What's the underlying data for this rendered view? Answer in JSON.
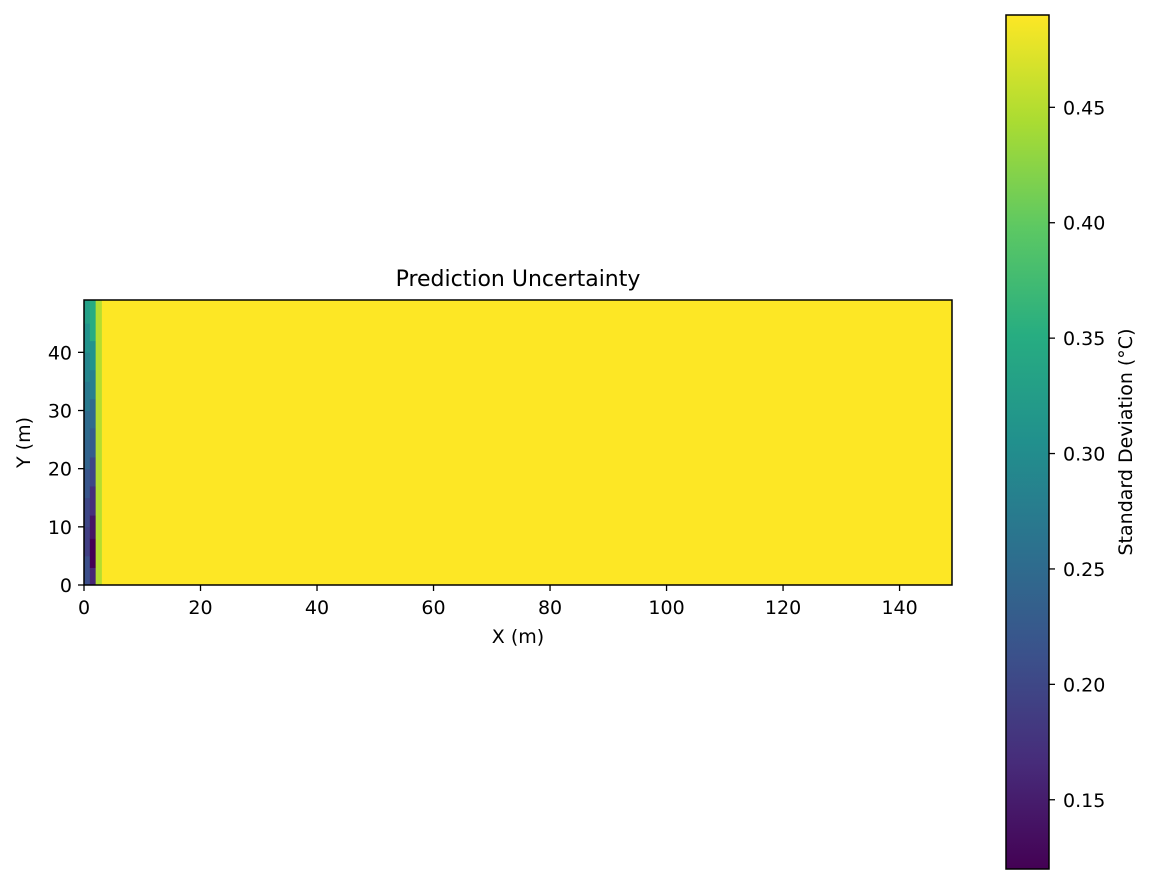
{
  "chart_data": {
    "type": "heatmap",
    "title": "Prediction Uncertainty",
    "xlabel": "X (m)",
    "ylabel": "Y (m)",
    "xlim": [
      0,
      149
    ],
    "ylim": [
      0,
      49
    ],
    "xticks": [
      0,
      20,
      40,
      60,
      80,
      100,
      120,
      140
    ],
    "yticks": [
      0,
      10,
      20,
      30,
      40
    ],
    "colorbar": {
      "label": "Standard Deviation (°C)",
      "range": [
        0.12,
        0.49
      ],
      "ticks": [
        0.15,
        0.2,
        0.25,
        0.3,
        0.35,
        0.4,
        0.45
      ],
      "colormap": "viridis"
    },
    "grid": false,
    "cell_size_m": 1,
    "background_value": 0.49,
    "columns": [
      {
        "x": 0,
        "bands": [
          {
            "y0": 0,
            "y1": 5,
            "value": 0.21
          },
          {
            "y0": 5,
            "y1": 10,
            "value": 0.19
          },
          {
            "y0": 10,
            "y1": 15,
            "value": 0.2
          },
          {
            "y0": 15,
            "y1": 20,
            "value": 0.22
          },
          {
            "y0": 20,
            "y1": 25,
            "value": 0.24
          },
          {
            "y0": 25,
            "y1": 30,
            "value": 0.25
          },
          {
            "y0": 30,
            "y1": 35,
            "value": 0.27
          },
          {
            "y0": 35,
            "y1": 40,
            "value": 0.29
          },
          {
            "y0": 40,
            "y1": 45,
            "value": 0.31
          },
          {
            "y0": 45,
            "y1": 49,
            "value": 0.33
          }
        ]
      },
      {
        "x": 1,
        "bands": [
          {
            "y0": 0,
            "y1": 3,
            "value": 0.16
          },
          {
            "y0": 3,
            "y1": 8,
            "value": 0.12
          },
          {
            "y0": 8,
            "y1": 12,
            "value": 0.14
          },
          {
            "y0": 12,
            "y1": 17,
            "value": 0.17
          },
          {
            "y0": 17,
            "y1": 22,
            "value": 0.2
          },
          {
            "y0": 22,
            "y1": 27,
            "value": 0.23
          },
          {
            "y0": 27,
            "y1": 32,
            "value": 0.25
          },
          {
            "y0": 32,
            "y1": 37,
            "value": 0.28
          },
          {
            "y0": 37,
            "y1": 42,
            "value": 0.31
          },
          {
            "y0": 42,
            "y1": 49,
            "value": 0.35
          }
        ]
      },
      {
        "x": 2,
        "bands": [
          {
            "y0": 0,
            "y1": 49,
            "value": 0.45
          }
        ]
      }
    ]
  }
}
